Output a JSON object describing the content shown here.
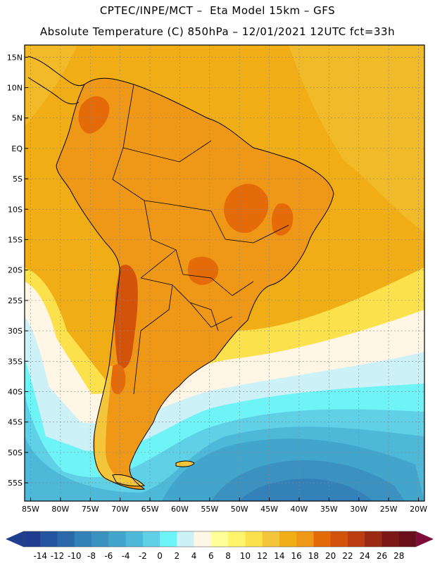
{
  "header": {
    "line1": "CPTEC/INPE/MCT –  Eta Model 15km – GFS",
    "line2": "Absolute Temperature (C) 850hPa – 12/01/2021 12UTC fct=33h"
  },
  "map": {
    "region": "South America",
    "lat_labels": [
      "15N",
      "10N",
      "5N",
      "EQ",
      "5S",
      "10S",
      "15S",
      "20S",
      "25S",
      "30S",
      "35S",
      "40S",
      "45S",
      "50S",
      "55S"
    ],
    "lon_labels": [
      "85W",
      "80W",
      "75W",
      "70W",
      "65W",
      "60W",
      "55W",
      "50W",
      "45W",
      "40W",
      "35W",
      "30W",
      "25W",
      "20W"
    ]
  },
  "colorbar": {
    "labels": [
      "-14",
      "-12",
      "-10",
      "-8",
      "-6",
      "-4",
      "-2",
      "0",
      "2",
      "4",
      "6",
      "8",
      "10",
      "12",
      "14",
      "16",
      "18",
      "20",
      "22",
      "24",
      "26",
      "28"
    ],
    "colors": [
      "#1f3e8f",
      "#23569e",
      "#2a6aab",
      "#3480b9",
      "#3b92c1",
      "#42a6cc",
      "#4db8d8",
      "#5fd0e5",
      "#6ef3f6",
      "#ccf1f7",
      "#fff6e6",
      "#ffff9a",
      "#fff56a",
      "#fbe14b",
      "#f3c53b",
      "#f0ad16",
      "#ef9817",
      "#e56a08",
      "#d4530a",
      "#bb3d10",
      "#9b2a12",
      "#7b1816",
      "#6a0f1a"
    ],
    "low_arrow_color": "#1f3e8f",
    "high_arrow_color": "#7e0b3a"
  },
  "field_colors": {
    "ocean_warm": "#f0ad16",
    "ocean_mid": "#f3c53b",
    "land_warm": "#ef9817",
    "land_hot": "#e56a08",
    "land_very_hot": "#d4530a",
    "cool_yellow": "#fbe14b",
    "pale": "#fff6e6",
    "light_cyan": "#ccf1f7",
    "cyan": "#6ef3f6",
    "sky": "#5fd0e5",
    "teal": "#4db8d8",
    "blue1": "#42a6cc",
    "blue2": "#3b92c1",
    "blue3": "#3480b9"
  }
}
